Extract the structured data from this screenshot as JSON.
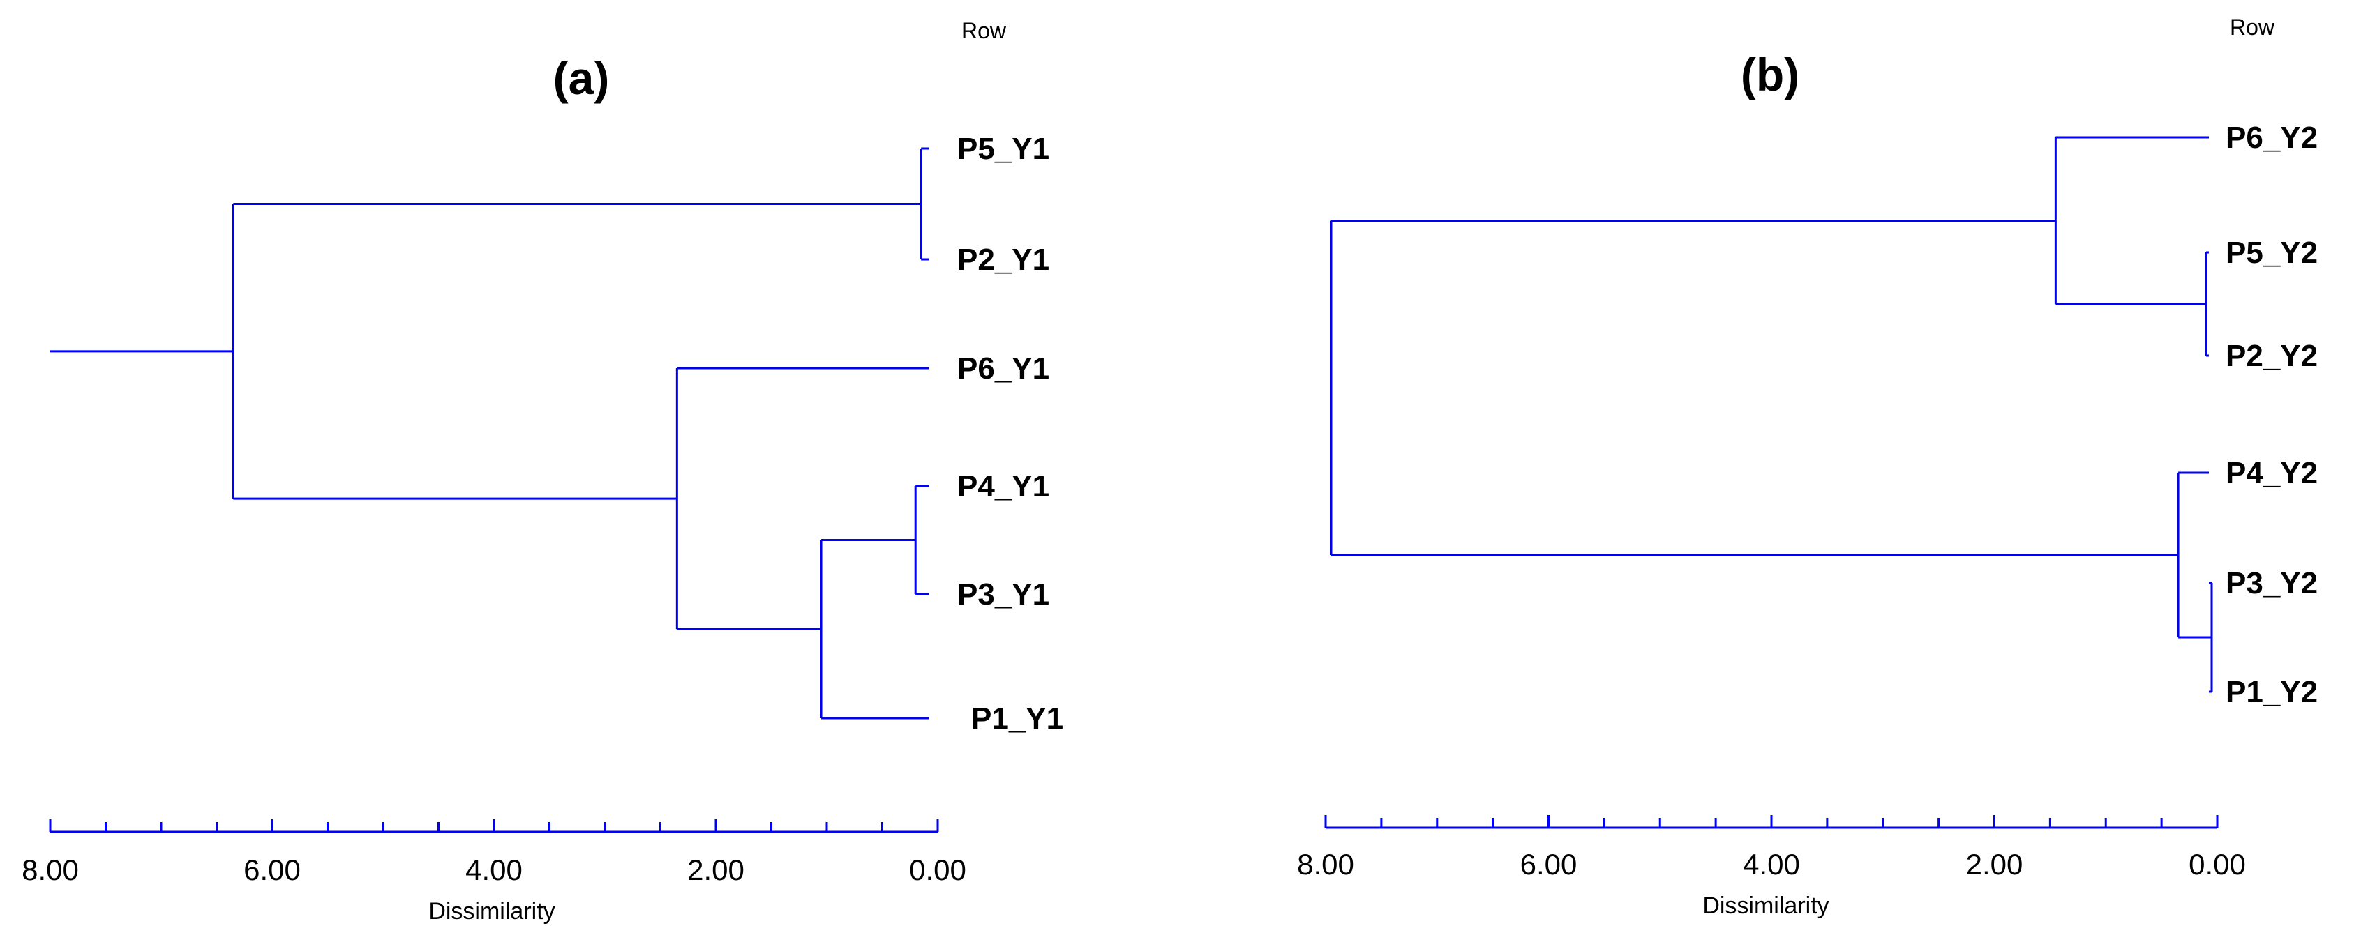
{
  "colors": {
    "dendrogram": "#0000ff",
    "text": "#000000"
  },
  "chart_data": [
    {
      "type": "dendrogram",
      "title": "(a)",
      "row_header": "Row",
      "xlabel": "Dissimilarity",
      "xlim": [
        8.0,
        0.0
      ],
      "ticks": [
        "8.00",
        "6.00",
        "4.00",
        "2.00",
        "0.00"
      ],
      "leaves": [
        "P5_Y1",
        "P2_Y1",
        "P6_Y1",
        "P4_Y1",
        "P3_Y1",
        "P1_Y1"
      ],
      "merges": [
        {
          "a": "P4_Y1",
          "b": "P3_Y1",
          "height": 0.2
        },
        {
          "a": "P5_Y1",
          "b": "P2_Y1",
          "height": 0.15
        },
        {
          "a": "P4_Y1+P3_Y1",
          "b": "P1_Y1",
          "height": 1.05
        },
        {
          "a": "P6_Y1",
          "b": "P4_Y1+P3_Y1+P1_Y1",
          "height": 2.35
        },
        {
          "a": "P5_Y1+P2_Y1",
          "b": "P6_Y1+P4_Y1+P3_Y1+P1_Y1",
          "height": 6.35
        }
      ],
      "root_height": 8.0
    },
    {
      "type": "dendrogram",
      "title": "(b)",
      "row_header": "Row",
      "xlabel": "Dissimilarity",
      "xlim": [
        8.0,
        0.0
      ],
      "ticks": [
        "8.00",
        "6.00",
        "4.00",
        "2.00",
        "0.00"
      ],
      "leaves": [
        "P6_Y2",
        "P5_Y2",
        "P2_Y2",
        "P4_Y2",
        "P3_Y2",
        "P1_Y2"
      ],
      "merges": [
        {
          "a": "P3_Y2",
          "b": "P1_Y2",
          "height": 0.05
        },
        {
          "a": "P5_Y2",
          "b": "P2_Y2",
          "height": 0.1
        },
        {
          "a": "P4_Y2",
          "b": "P3_Y2+P1_Y2",
          "height": 0.35
        },
        {
          "a": "P6_Y2",
          "b": "P5_Y2+P2_Y2",
          "height": 1.45
        },
        {
          "a": "P6_Y2+P5_Y2+P2_Y2",
          "b": "P4_Y2+P3_Y2+P1_Y2",
          "height": 7.95
        }
      ],
      "root_height": 7.95
    }
  ]
}
